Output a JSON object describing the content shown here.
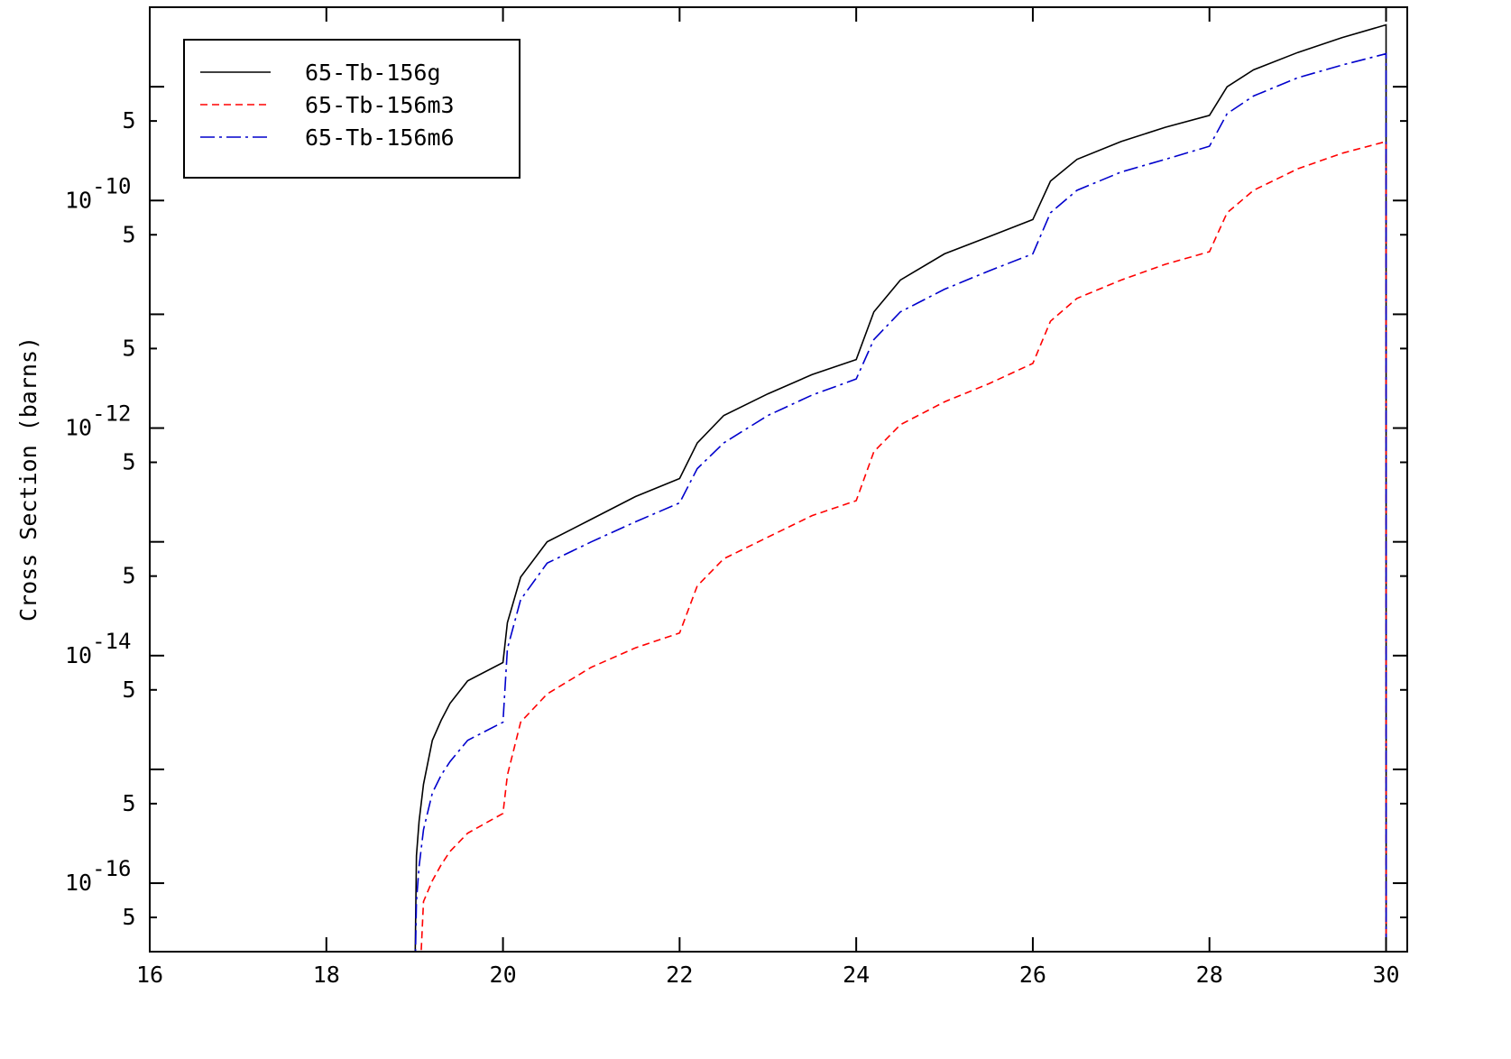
{
  "chart_data": {
    "type": "line",
    "y_label": "Cross Section (barns)",
    "log_y": true,
    "x": [
      19.0,
      19.02,
      19.05,
      19.1,
      19.2,
      19.3,
      19.4,
      19.6,
      20,
      20.05,
      20.2,
      20.5,
      21,
      21.5,
      22,
      22.2,
      22.5,
      23,
      23.5,
      24,
      24.2,
      24.5,
      25,
      25.5,
      26,
      26.2,
      26.5,
      27,
      27.5,
      28,
      28.2,
      28.5,
      29,
      29.5,
      30,
      30.001
    ],
    "series": [
      {
        "name": "65-Tb-156g",
        "color": "#000000",
        "dash": "solid",
        "values": [
          1e-17,
          1.74e-16,
          3.5e-16,
          7.4e-16,
          1.8e-15,
          2.7e-15,
          3.8e-15,
          6e-15,
          8.7e-15,
          1.95e-14,
          4.9e-14,
          1e-13,
          1.58e-13,
          2.5e-13,
          3.6e-13,
          7.4e-13,
          1.29e-12,
          2e-12,
          2.95e-12,
          4e-12,
          1.05e-11,
          2e-11,
          3.4e-11,
          4.8e-11,
          6.8e-11,
          1.48e-10,
          2.3e-10,
          3.3e-10,
          4.4e-10,
          5.6e-10,
          1e-09,
          1.41e-09,
          2e-09,
          2.7e-09,
          3.5e-09,
          1e-17
        ]
      },
      {
        "name": "65-Tb-156m3",
        "color": "#ff0000",
        "dash": "dashed",
        "values": [
          null,
          null,
          1e-17,
          6.9e-17,
          1.05e-16,
          1.45e-16,
          1.9e-16,
          2.75e-16,
          4.1e-16,
          8.9e-16,
          2.6e-15,
          4.6e-15,
          7.9e-15,
          1.17e-14,
          1.58e-14,
          4.1e-14,
          7.1e-14,
          1.1e-13,
          1.7e-13,
          2.3e-13,
          6.2e-13,
          1.07e-12,
          1.7e-12,
          2.45e-12,
          3.7e-12,
          8.7e-12,
          1.38e-11,
          2e-11,
          2.75e-11,
          3.55e-11,
          7.8e-11,
          1.23e-10,
          1.9e-10,
          2.6e-10,
          3.3e-10,
          1e-17
        ]
      },
      {
        "name": "65-Tb-156m6",
        "color": "#0000cc",
        "dash": "dashdot",
        "values": [
          1e-17,
          6.9e-17,
          1.4e-16,
          2.95e-16,
          6.2e-16,
          8.9e-16,
          1.17e-15,
          1.8e-15,
          2.6e-15,
          1.15e-14,
          3.1e-14,
          6.5e-14,
          1e-13,
          1.5e-13,
          2.2e-13,
          4.4e-13,
          7.4e-13,
          1.29e-12,
          1.95e-12,
          2.7e-12,
          6e-12,
          1.05e-11,
          1.66e-11,
          2.4e-11,
          3.4e-11,
          7.8e-11,
          1.23e-10,
          1.78e-10,
          2.3e-10,
          3e-10,
          5.8e-10,
          8.3e-10,
          1.2e-09,
          1.55e-09,
          1.95e-09,
          1e-17
        ]
      }
    ],
    "xlim": [
      16,
      30.24
    ],
    "xticks": [
      16,
      18,
      20,
      22,
      24,
      26,
      28,
      30
    ],
    "ylim": [
      2.5e-17,
      5e-09
    ],
    "yticks": [
      {
        "value": 5e-17,
        "label": "5"
      },
      {
        "value": 1e-16,
        "label": "10",
        "exponent": "-16"
      },
      {
        "value": 5e-16,
        "label": "5"
      },
      {
        "value": 5e-15,
        "label": "5"
      },
      {
        "value": 1e-14,
        "label": "10",
        "exponent": "-14"
      },
      {
        "value": 5e-14,
        "label": "5"
      },
      {
        "value": 5e-13,
        "label": "5"
      },
      {
        "value": 1e-12,
        "label": "10",
        "exponent": "-12"
      },
      {
        "value": 5e-12,
        "label": "5"
      },
      {
        "value": 5e-11,
        "label": "5"
      },
      {
        "value": 1e-10,
        "label": "10",
        "exponent": "-10"
      },
      {
        "value": 5e-10,
        "label": "5"
      }
    ],
    "y_unlabeled_ticks": [
      1e-15,
      1e-13,
      1e-11,
      1e-09
    ],
    "legend": "upper left"
  }
}
